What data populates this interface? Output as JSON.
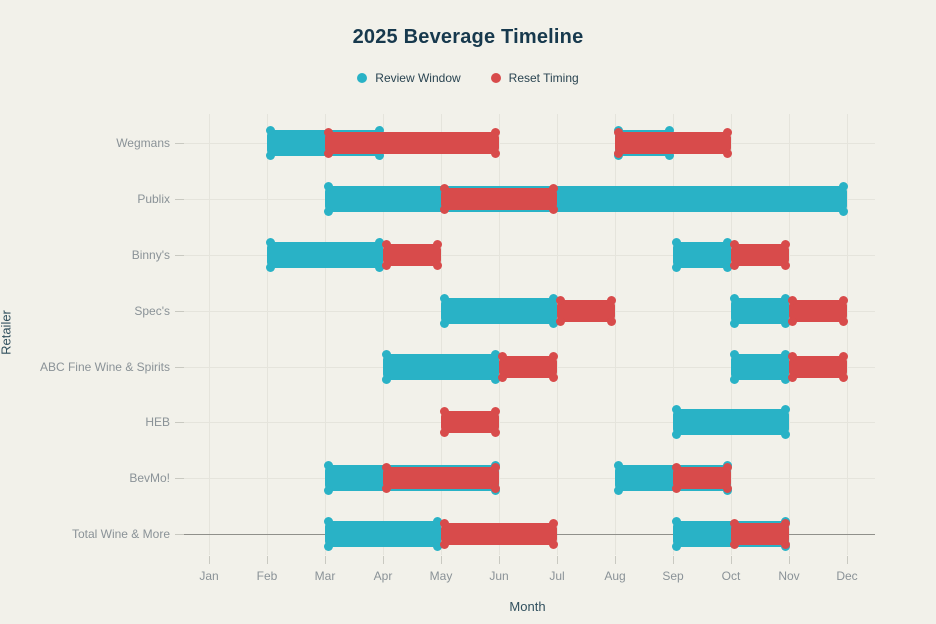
{
  "title": "2025 Beverage Timeline",
  "axes": {
    "x_label": "Month",
    "y_label": "Retailer",
    "months": [
      "Jan",
      "Feb",
      "Mar",
      "Apr",
      "May",
      "Jun",
      "Jul",
      "Aug",
      "Sep",
      "Oct",
      "Nov",
      "Dec"
    ]
  },
  "legend": {
    "items": [
      {
        "label": "Review Window",
        "color": "#29b2c6"
      },
      {
        "label": "Reset Timing",
        "color": "#d84b4b"
      }
    ]
  },
  "colors": {
    "background": "#f2f1ea",
    "review": "#29b2c6",
    "reset": "#d84b4b",
    "grid": "#e5e4dc",
    "title_text": "#17394d",
    "tick_text": "#8a9297"
  },
  "chart_data": {
    "type": "gantt",
    "title": "2025 Beverage Timeline",
    "xlabel": "Month",
    "ylabel": "Retailer",
    "x_categories": [
      "Jan",
      "Feb",
      "Mar",
      "Apr",
      "May",
      "Jun",
      "Jul",
      "Aug",
      "Sep",
      "Oct",
      "Nov",
      "Dec"
    ],
    "retailers": [
      "Wegmans",
      "Publix",
      "Binny's",
      "Spec's",
      "ABC Fine Wine & Spirits",
      "HEB",
      "BevMo!",
      "Total Wine & More"
    ],
    "grid": true,
    "legend_position": "top",
    "series": [
      {
        "name": "Review Window",
        "color": "#29b2c6",
        "segments": [
          {
            "retailer": "Wegmans",
            "start": "Feb",
            "end": "Apr",
            "start_month": 2,
            "end_month": 4
          },
          {
            "retailer": "Wegmans",
            "start": "Aug",
            "end": "Sep",
            "start_month": 8,
            "end_month": 9
          },
          {
            "retailer": "Publix",
            "start": "Mar",
            "end": "Dec",
            "start_month": 3,
            "end_month": 12
          },
          {
            "retailer": "Binny's",
            "start": "Feb",
            "end": "Apr",
            "start_month": 2,
            "end_month": 4
          },
          {
            "retailer": "Binny's",
            "start": "Sep",
            "end": "Oct",
            "start_month": 9,
            "end_month": 10
          },
          {
            "retailer": "Spec's",
            "start": "May",
            "end": "Jul",
            "start_month": 5,
            "end_month": 7
          },
          {
            "retailer": "Spec's",
            "start": "Oct",
            "end": "Nov",
            "start_month": 10,
            "end_month": 11
          },
          {
            "retailer": "ABC Fine Wine & Spirits",
            "start": "Apr",
            "end": "Jun",
            "start_month": 4,
            "end_month": 6
          },
          {
            "retailer": "ABC Fine Wine & Spirits",
            "start": "Oct",
            "end": "Nov",
            "start_month": 10,
            "end_month": 11
          },
          {
            "retailer": "HEB",
            "start": "Sep",
            "end": "Nov",
            "start_month": 9,
            "end_month": 11
          },
          {
            "retailer": "BevMo!",
            "start": "Mar",
            "end": "Jun",
            "start_month": 3,
            "end_month": 6
          },
          {
            "retailer": "BevMo!",
            "start": "Aug",
            "end": "Oct",
            "start_month": 8,
            "end_month": 10
          },
          {
            "retailer": "Total Wine & More",
            "start": "Mar",
            "end": "May",
            "start_month": 3,
            "end_month": 5
          },
          {
            "retailer": "Total Wine & More",
            "start": "Sep",
            "end": "Nov",
            "start_month": 9,
            "end_month": 11
          }
        ]
      },
      {
        "name": "Reset Timing",
        "color": "#d84b4b",
        "segments": [
          {
            "retailer": "Wegmans",
            "start": "Mar",
            "end": "Jun",
            "start_month": 3,
            "end_month": 6
          },
          {
            "retailer": "Wegmans",
            "start": "Aug",
            "end": "Oct",
            "start_month": 8,
            "end_month": 10
          },
          {
            "retailer": "Publix",
            "start": "May",
            "end": "Jul",
            "start_month": 5,
            "end_month": 7
          },
          {
            "retailer": "Binny's",
            "start": "Apr",
            "end": "May",
            "start_month": 4,
            "end_month": 5
          },
          {
            "retailer": "Binny's",
            "start": "Oct",
            "end": "Nov",
            "start_month": 10,
            "end_month": 11
          },
          {
            "retailer": "Spec's",
            "start": "Jul",
            "end": "Aug",
            "start_month": 7,
            "end_month": 8
          },
          {
            "retailer": "Spec's",
            "start": "Nov",
            "end": "Dec",
            "start_month": 11,
            "end_month": 12
          },
          {
            "retailer": "ABC Fine Wine & Spirits",
            "start": "Jun",
            "end": "Jul",
            "start_month": 6,
            "end_month": 7
          },
          {
            "retailer": "ABC Fine Wine & Spirits",
            "start": "Nov",
            "end": "Dec",
            "start_month": 11,
            "end_month": 12
          },
          {
            "retailer": "HEB",
            "start": "May",
            "end": "Jun",
            "start_month": 5,
            "end_month": 6
          },
          {
            "retailer": "BevMo!",
            "start": "Apr",
            "end": "Jun",
            "start_month": 4,
            "end_month": 6
          },
          {
            "retailer": "BevMo!",
            "start": "Sep",
            "end": "Oct",
            "start_month": 9,
            "end_month": 10
          },
          {
            "retailer": "Total Wine & More",
            "start": "May",
            "end": "Jul",
            "start_month": 5,
            "end_month": 7
          },
          {
            "retailer": "Total Wine & More",
            "start": "Oct",
            "end": "Nov",
            "start_month": 10,
            "end_month": 11
          }
        ]
      }
    ]
  }
}
